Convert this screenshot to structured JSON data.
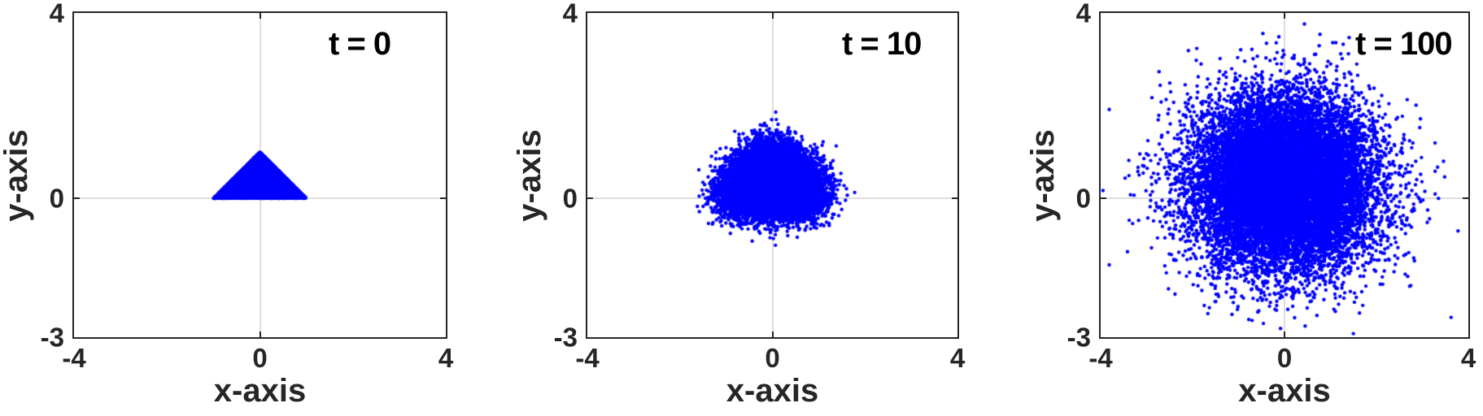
{
  "figure": {
    "background": "#ffffff",
    "marker_color": "#0000ff",
    "axis_color": "#262626",
    "grid_color": "#dedede",
    "annotation_color": "#000000"
  },
  "chart_data": [
    {
      "type": "scatter",
      "annotation": "t = 0",
      "time": 0,
      "xlabel": "x-axis",
      "ylabel": "y-axis",
      "xlim": [
        -4,
        4
      ],
      "ylim": [
        -3,
        4
      ],
      "xticks": [
        -4,
        0,
        4
      ],
      "yticks": [
        4,
        0,
        -3
      ],
      "xtick_labels": [
        "-4",
        "0",
        "4"
      ],
      "ytick_labels": [
        "4",
        "0",
        "-3"
      ],
      "grid": "zero-lines-only",
      "legend": "none",
      "marker": "point",
      "points": {
        "distribution": "uniform triangle",
        "triangle_vertices": [
          [
            -1,
            0
          ],
          [
            1,
            0
          ],
          [
            0,
            1
          ]
        ],
        "diffusion_sigma": 0,
        "n": 15000,
        "extent_x": [
          -1.05,
          1.05
        ],
        "extent_y": [
          0,
          1.0
        ]
      }
    },
    {
      "type": "scatter",
      "annotation": "t = 10",
      "time": 10,
      "xlabel": "x-axis",
      "ylabel": "y-axis",
      "xlim": [
        -4,
        4
      ],
      "ylim": [
        -3,
        4
      ],
      "xticks": [
        -4,
        0,
        4
      ],
      "yticks": [
        4,
        0,
        -3
      ],
      "xtick_labels": [
        "-4",
        "0",
        "4"
      ],
      "ytick_labels": [
        "4",
        "0",
        "-3"
      ],
      "grid": "zero-lines-only",
      "legend": "none",
      "marker": "point",
      "points": {
        "distribution": "uniform triangle + gaussian diffusion",
        "triangle_vertices": [
          [
            -1,
            0
          ],
          [
            1,
            0
          ],
          [
            0,
            1
          ]
        ],
        "diffusion_sigma": 0.28,
        "n": 15000,
        "extent_x": [
          -1.7,
          1.65
        ],
        "extent_y": [
          -0.95,
          1.75
        ]
      }
    },
    {
      "type": "scatter",
      "annotation": "t = 100",
      "time": 100,
      "xlabel": "x-axis",
      "ylabel": "y-axis",
      "xlim": [
        -4,
        4
      ],
      "ylim": [
        -3,
        4
      ],
      "xticks": [
        -4,
        0,
        4
      ],
      "yticks": [
        4,
        0,
        -3
      ],
      "xtick_labels": [
        "-4",
        "0",
        "4"
      ],
      "ytick_labels": [
        "4",
        "0",
        "-3"
      ],
      "grid": "zero-lines-only",
      "legend": "none",
      "marker": "point",
      "points": {
        "distribution": "uniform triangle + gaussian diffusion",
        "triangle_vertices": [
          [
            -1,
            0
          ],
          [
            1,
            0
          ],
          [
            0,
            1
          ]
        ],
        "diffusion_sigma": 0.9,
        "n": 15000,
        "extent_x": [
          -3.8,
          3.9
        ],
        "extent_y": [
          -3.0,
          3.85
        ]
      }
    }
  ]
}
